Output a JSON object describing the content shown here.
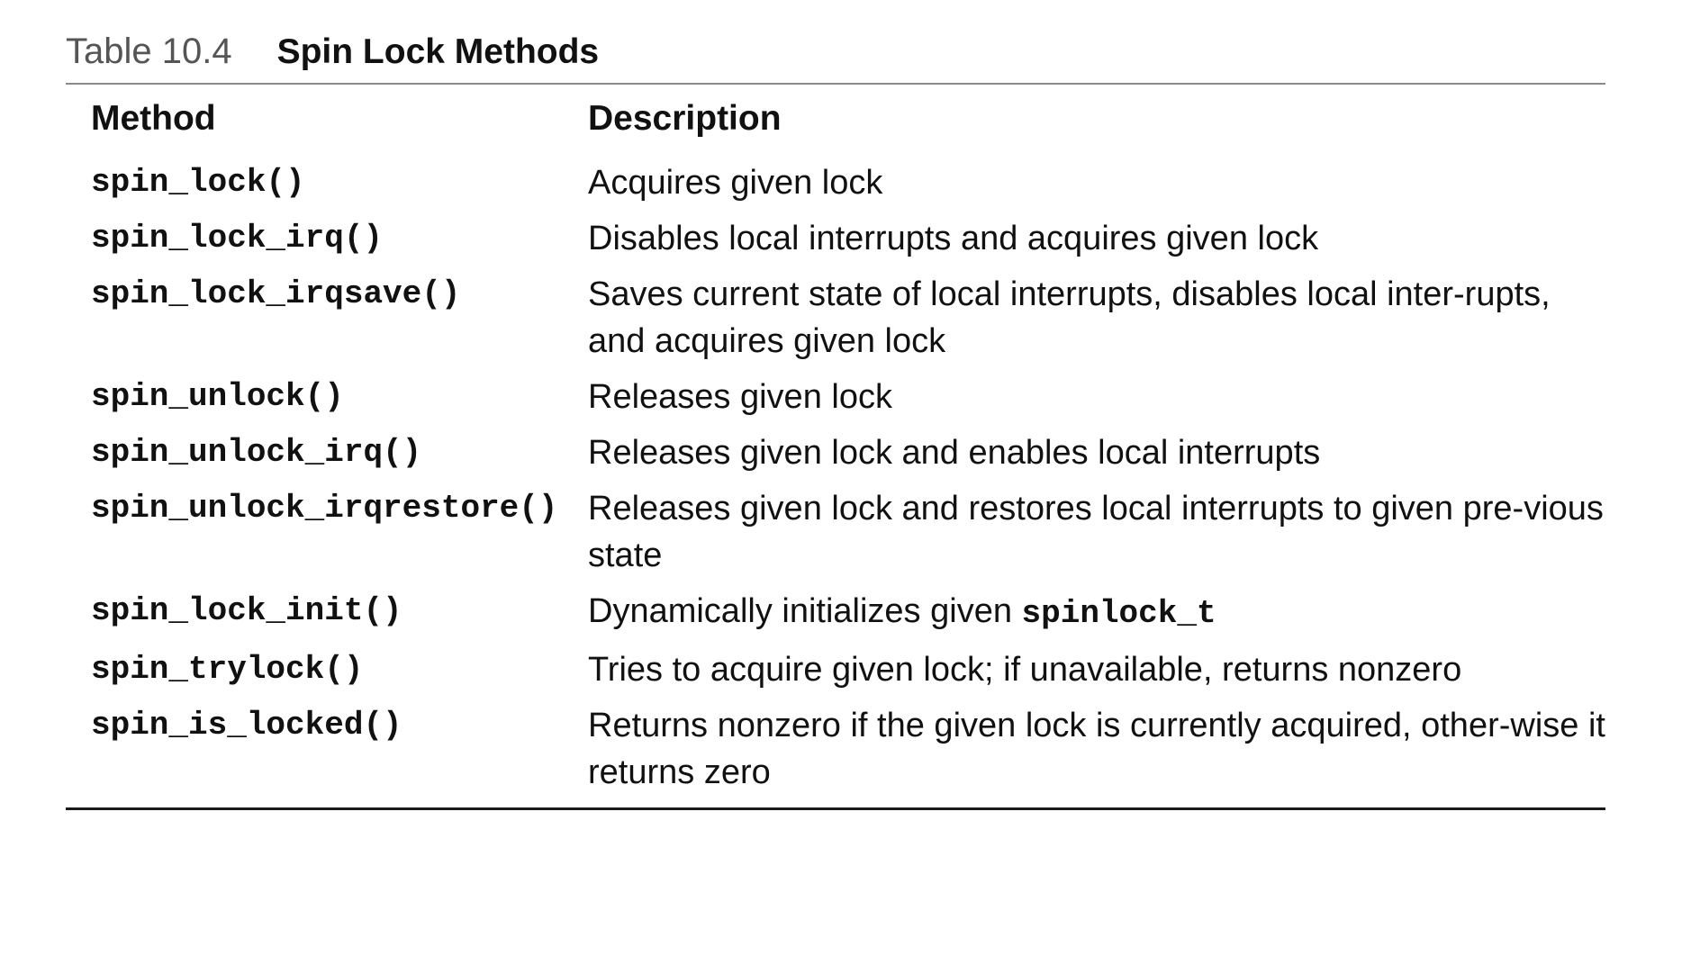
{
  "caption": {
    "number": "Table 10.4",
    "title": "Spin Lock Methods"
  },
  "table": {
    "headers": {
      "method": "Method",
      "description": "Description"
    },
    "rows": [
      {
        "method": "spin_lock()",
        "description": "Acquires given lock"
      },
      {
        "method": "spin_lock_irq()",
        "description": "Disables local interrupts and acquires given lock"
      },
      {
        "method": "spin_lock_irqsave()",
        "description": "Saves current state of local interrupts, disables local inter-rupts, and acquires given lock"
      },
      {
        "method": "spin_unlock()",
        "description": "Releases given lock"
      },
      {
        "method": "spin_unlock_irq()",
        "description": "Releases given lock and enables local interrupts"
      },
      {
        "method": "spin_unlock_irqrestore()",
        "description": "Releases given lock and restores local interrupts to given pre-vious state"
      },
      {
        "method": "spin_lock_init()",
        "description": "Dynamically initializes given",
        "description_code": "spinlock_t"
      },
      {
        "method": "spin_trylock()",
        "description": "Tries to acquire given lock; if unavailable, returns nonzero"
      },
      {
        "method": "spin_is_locked()",
        "description": "Returns nonzero if the given lock is currently acquired, other-wise it returns zero"
      }
    ]
  }
}
